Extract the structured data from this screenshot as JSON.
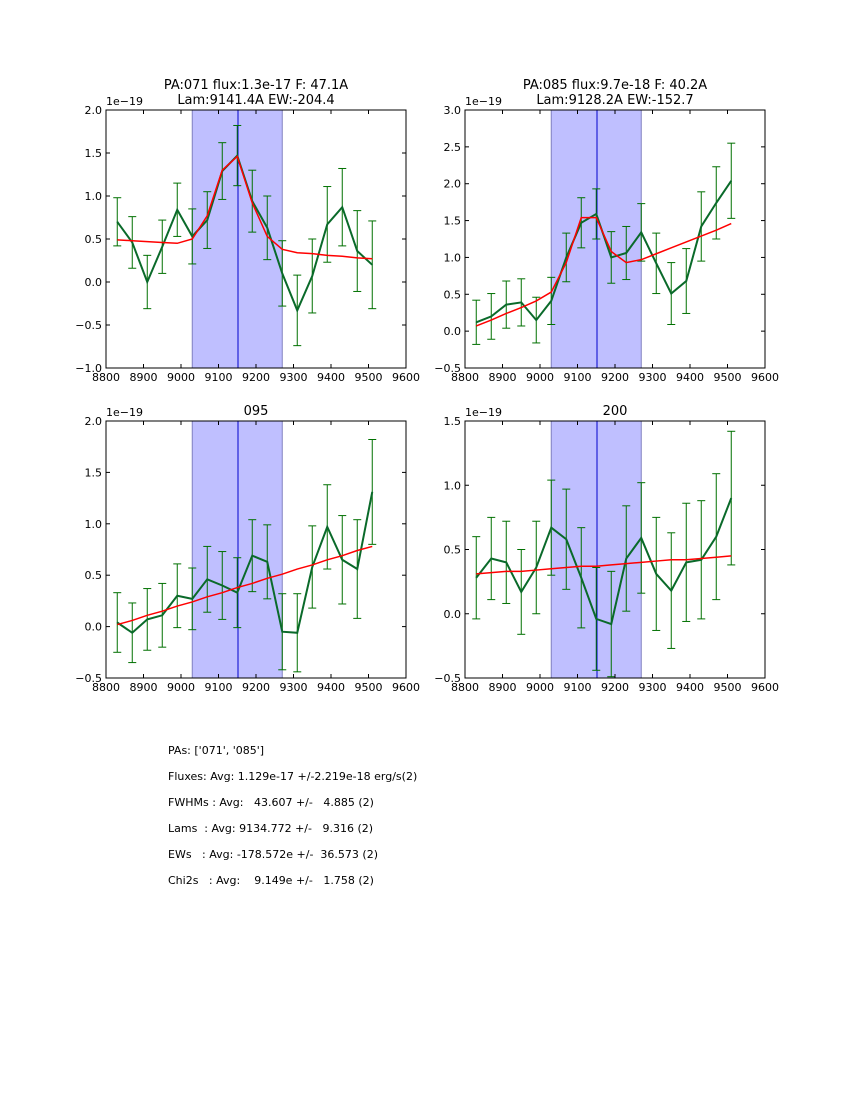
{
  "chart_data": [
    {
      "type": "line",
      "title": "PA:071 flux:1.3e-17 F: 47.1A\nLam:9141.4A EW:-204.4",
      "title_lines": [
        "PA:071 flux:1.3e-17 F: 47.1A",
        "Lam:9141.4A EW:-204.4"
      ],
      "offset_text": "1e−19",
      "xlim": [
        8800,
        9600
      ],
      "ylim": [
        -1.0,
        2.0
      ],
      "xticks": [
        8800,
        8900,
        9000,
        9100,
        9200,
        9300,
        9400,
        9500,
        9600
      ],
      "xtick_labels": [
        "8800",
        "8900",
        "9000",
        "9100",
        "9200",
        "9300",
        "9400",
        "9500",
        "9600"
      ],
      "yticks": [
        -1.0,
        -0.5,
        0.0,
        0.5,
        1.0,
        1.5,
        2.0
      ],
      "ytick_labels": [
        "−1.0",
        "−0.5",
        "0.0",
        "0.5",
        "1.0",
        "1.5",
        "2.0"
      ],
      "band": [
        9030,
        9270
      ],
      "center_line": 9152,
      "x": [
        8830,
        8870,
        8910,
        8950,
        8990,
        9030,
        9070,
        9110,
        9150,
        9190,
        9230,
        9270,
        9310,
        9350,
        9390,
        9430,
        9470,
        9510
      ],
      "series": [
        {
          "name": "data",
          "color": "#006400",
          "values": [
            0.7,
            0.46,
            0.0,
            0.41,
            0.84,
            0.53,
            0.72,
            1.29,
            1.47,
            0.94,
            0.63,
            0.1,
            -0.33,
            0.07,
            0.67,
            0.87,
            0.36,
            0.2
          ],
          "errors": [
            0.28,
            0.3,
            0.31,
            0.31,
            0.31,
            0.32,
            0.33,
            0.33,
            0.35,
            0.36,
            0.37,
            0.38,
            0.41,
            0.43,
            0.44,
            0.45,
            0.47,
            0.51
          ]
        },
        {
          "name": "model",
          "color": "#ff0000",
          "values": [
            0.49,
            0.48,
            0.47,
            0.46,
            0.45,
            0.5,
            0.77,
            1.3,
            1.46,
            0.92,
            0.53,
            0.38,
            0.34,
            0.33,
            0.31,
            0.3,
            0.28,
            0.27
          ]
        }
      ]
    },
    {
      "type": "line",
      "title": "PA:085 flux:9.7e-18 F: 40.2A\nLam:9128.2A EW:-152.7",
      "title_lines": [
        "PA:085 flux:9.7e-18 F: 40.2A",
        "Lam:9128.2A EW:-152.7"
      ],
      "offset_text": "1e−19",
      "xlim": [
        8800,
        9600
      ],
      "ylim": [
        -0.5,
        3.0
      ],
      "xticks": [
        8800,
        8900,
        9000,
        9100,
        9200,
        9300,
        9400,
        9500,
        9600
      ],
      "xtick_labels": [
        "8800",
        "8900",
        "9000",
        "9100",
        "9200",
        "9300",
        "9400",
        "9500",
        "9600"
      ],
      "yticks": [
        -0.5,
        0.0,
        0.5,
        1.0,
        1.5,
        2.0,
        2.5,
        3.0
      ],
      "ytick_labels": [
        "−0.5",
        "0.0",
        "0.5",
        "1.0",
        "1.5",
        "2.0",
        "2.5",
        "3.0"
      ],
      "band": [
        9030,
        9270
      ],
      "center_line": 9152,
      "x": [
        8830,
        8870,
        8910,
        8950,
        8990,
        9030,
        9070,
        9110,
        9150,
        9190,
        9230,
        9270,
        9310,
        9350,
        9390,
        9430,
        9470,
        9510
      ],
      "series": [
        {
          "name": "data",
          "color": "#006400",
          "values": [
            0.12,
            0.2,
            0.36,
            0.39,
            0.15,
            0.41,
            1.0,
            1.47,
            1.59,
            1.0,
            1.06,
            1.34,
            0.92,
            0.51,
            0.68,
            1.42,
            1.74,
            2.04
          ],
          "errors": [
            0.3,
            0.31,
            0.32,
            0.32,
            0.31,
            0.32,
            0.33,
            0.34,
            0.34,
            0.35,
            0.36,
            0.39,
            0.41,
            0.42,
            0.44,
            0.47,
            0.49,
            0.51
          ]
        },
        {
          "name": "model",
          "color": "#ff0000",
          "values": [
            0.07,
            0.15,
            0.24,
            0.32,
            0.41,
            0.53,
            0.93,
            1.54,
            1.54,
            1.08,
            0.93,
            0.97,
            1.05,
            1.13,
            1.21,
            1.29,
            1.37,
            1.46
          ]
        }
      ]
    },
    {
      "type": "line",
      "title": "095",
      "title_lines": [
        "095"
      ],
      "offset_text": "1e−19",
      "xlim": [
        8800,
        9600
      ],
      "ylim": [
        -0.5,
        2.0
      ],
      "xticks": [
        8800,
        8900,
        9000,
        9100,
        9200,
        9300,
        9400,
        9500,
        9600
      ],
      "xtick_labels": [
        "8800",
        "8900",
        "9000",
        "9100",
        "9200",
        "9300",
        "9400",
        "9500",
        "9600"
      ],
      "yticks": [
        -0.5,
        0.0,
        0.5,
        1.0,
        1.5,
        2.0
      ],
      "ytick_labels": [
        "−0.5",
        "0.0",
        "0.5",
        "1.0",
        "1.5",
        "2.0"
      ],
      "band": [
        9030,
        9270
      ],
      "center_line": 9152,
      "x": [
        8830,
        8870,
        8910,
        8950,
        8990,
        9030,
        9070,
        9110,
        9150,
        9190,
        9230,
        9270,
        9310,
        9350,
        9390,
        9430,
        9470,
        9510
      ],
      "series": [
        {
          "name": "data",
          "color": "#006400",
          "values": [
            0.04,
            -0.06,
            0.07,
            0.11,
            0.3,
            0.27,
            0.46,
            0.4,
            0.33,
            0.69,
            0.63,
            -0.05,
            -0.06,
            0.58,
            0.97,
            0.65,
            0.56,
            1.31
          ],
          "errors": [
            0.29,
            0.29,
            0.3,
            0.31,
            0.31,
            0.3,
            0.32,
            0.33,
            0.34,
            0.35,
            0.36,
            0.37,
            0.38,
            0.4,
            0.41,
            0.43,
            0.48,
            0.51
          ]
        },
        {
          "name": "model",
          "color": "#ff0000",
          "values": [
            0.02,
            0.06,
            0.11,
            0.15,
            0.2,
            0.24,
            0.29,
            0.33,
            0.38,
            0.42,
            0.47,
            0.51,
            0.56,
            0.6,
            0.65,
            0.69,
            0.74,
            0.78
          ]
        }
      ]
    },
    {
      "type": "line",
      "title": "200",
      "title_lines": [
        "200"
      ],
      "offset_text": "1e−19",
      "xlim": [
        8800,
        9600
      ],
      "ylim": [
        -0.5,
        1.5
      ],
      "xticks": [
        8800,
        8900,
        9000,
        9100,
        9200,
        9300,
        9400,
        9500,
        9600
      ],
      "xtick_labels": [
        "8800",
        "8900",
        "9000",
        "9100",
        "9200",
        "9300",
        "9400",
        "9500",
        "9600"
      ],
      "yticks": [
        -0.5,
        0.0,
        0.5,
        1.0,
        1.5
      ],
      "ytick_labels": [
        "−0.5",
        "0.0",
        "0.5",
        "1.0",
        "1.5"
      ],
      "band": [
        9030,
        9270
      ],
      "center_line": 9152,
      "x": [
        8830,
        8870,
        8910,
        8950,
        8990,
        9030,
        9070,
        9110,
        9150,
        9190,
        9230,
        9270,
        9310,
        9350,
        9390,
        9430,
        9470,
        9510
      ],
      "series": [
        {
          "name": "data",
          "color": "#006400",
          "values": [
            0.28,
            0.43,
            0.4,
            0.17,
            0.36,
            0.67,
            0.58,
            0.28,
            -0.04,
            -0.08,
            0.43,
            0.59,
            0.31,
            0.18,
            0.4,
            0.42,
            0.6,
            0.9
          ],
          "errors": [
            0.32,
            0.32,
            0.32,
            0.33,
            0.36,
            0.37,
            0.39,
            0.39,
            0.4,
            0.41,
            0.41,
            0.43,
            0.44,
            0.45,
            0.46,
            0.46,
            0.49,
            0.52
          ]
        },
        {
          "name": "model",
          "color": "#ff0000",
          "values": [
            0.31,
            0.32,
            0.33,
            0.33,
            0.34,
            0.35,
            0.36,
            0.37,
            0.37,
            0.38,
            0.39,
            0.4,
            0.41,
            0.42,
            0.42,
            0.43,
            0.44,
            0.45
          ]
        }
      ]
    }
  ],
  "colors": {
    "band": "#bfbfff",
    "band_edge": "#8080c0",
    "center_line": "#0000cc",
    "axis": "#000000"
  },
  "summary": {
    "pas": "PAs: ['071', '085']",
    "fluxes": "Fluxes: Avg: 1.129e-17 +/-2.219e-18 erg/s(2)",
    "fwhms": "FWHMs : Avg:   43.607 +/-   4.885 (2)",
    "lams": "Lams  : Avg: 9134.772 +/-   9.316 (2)",
    "ews": "EWs   : Avg: -178.572e +/-  36.573 (2)",
    "chi2s": "Chi2s   : Avg:    9.149e +/-   1.758 (2)"
  }
}
